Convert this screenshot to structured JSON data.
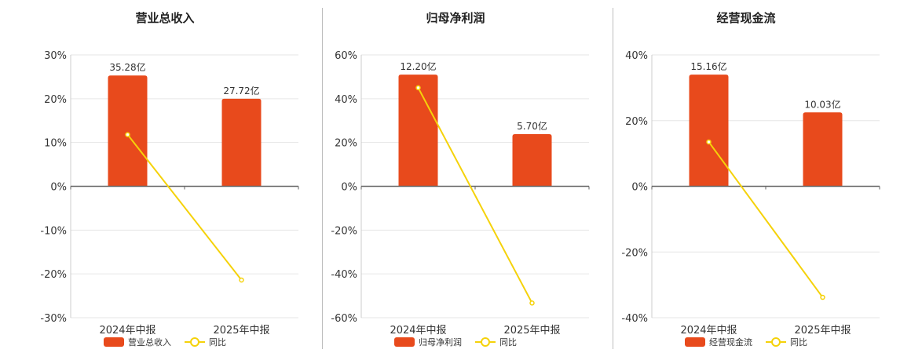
{
  "colors": {
    "bar": "#e84a1c",
    "line": "#f5d20a",
    "grid": "#e6e6e6",
    "axis": "#666666",
    "divider": "#bdbdbd"
  },
  "chart_data": [
    {
      "type": "bar",
      "title": "营业总收入",
      "categories": [
        "2024年中报",
        "2025年中报"
      ],
      "ylim": [
        -30,
        30
      ],
      "yticks": [
        30,
        20,
        10,
        0,
        -10,
        -20,
        -30
      ],
      "ytick_labels": [
        "30%",
        "20%",
        "10%",
        "0%",
        "-10%",
        "-20%",
        "-30%"
      ],
      "series": [
        {
          "name": "营业总收入",
          "type": "bar",
          "values": [
            25.3,
            20.0
          ],
          "labels": [
            "35.28亿",
            "27.72亿"
          ]
        },
        {
          "name": "同比",
          "type": "line",
          "values": [
            11.8,
            -21.4
          ]
        }
      ],
      "legend": "bottom-center",
      "grid": true
    },
    {
      "type": "bar",
      "title": "归母净利润",
      "categories": [
        "2024年中报",
        "2025年中报"
      ],
      "ylim": [
        -60,
        60
      ],
      "yticks": [
        60,
        40,
        20,
        0,
        -20,
        -40,
        -60
      ],
      "ytick_labels": [
        "60%",
        "40%",
        "20%",
        "0%",
        "-20%",
        "-40%",
        "-60%"
      ],
      "series": [
        {
          "name": "归母净利润",
          "type": "bar",
          "values": [
            51.0,
            23.8
          ],
          "labels": [
            "12.20亿",
            "5.70亿"
          ]
        },
        {
          "name": "同比",
          "type": "line",
          "values": [
            45.0,
            -53.3
          ]
        }
      ],
      "legend": "bottom-center",
      "grid": true
    },
    {
      "type": "bar",
      "title": "经营现金流",
      "categories": [
        "2024年中报",
        "2025年中报"
      ],
      "ylim": [
        -40,
        40
      ],
      "yticks": [
        40,
        20,
        0,
        -20,
        -40
      ],
      "ytick_labels": [
        "40%",
        "20%",
        "0%",
        "-20%",
        "-40%"
      ],
      "series": [
        {
          "name": "经营现金流",
          "type": "bar",
          "values": [
            34.0,
            22.5
          ],
          "labels": [
            "15.16亿",
            "10.03亿"
          ]
        },
        {
          "name": "同比",
          "type": "line",
          "values": [
            13.5,
            -33.8
          ]
        }
      ],
      "legend": "bottom-center",
      "grid": true
    }
  ]
}
